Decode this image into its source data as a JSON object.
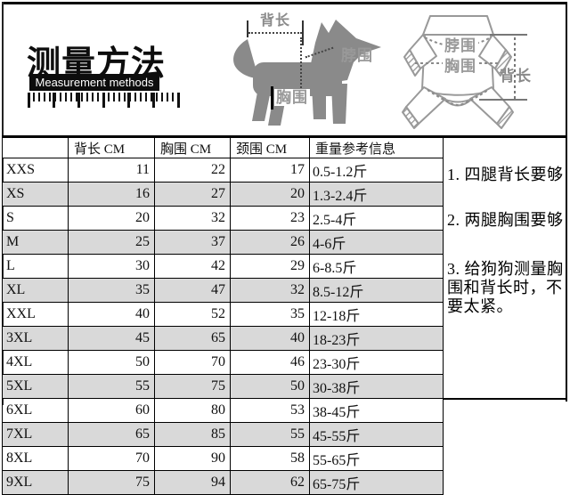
{
  "title": {
    "cn": "测量方法",
    "en": "Measurement methods"
  },
  "dog_diagram": {
    "back_length": "背长",
    "neck": "脖围",
    "chest": "胸围"
  },
  "garment_diagram": {
    "neck": "脖围",
    "chest": "胸围",
    "back_length": "背长"
  },
  "size_table": {
    "columns": [
      "",
      "背长 CM",
      "胸围 CM",
      "颈围 CM",
      "重量参考信息"
    ],
    "rows": [
      [
        "XXS",
        "11",
        "22",
        "17",
        "0.5-1.2斤"
      ],
      [
        "XS",
        "16",
        "27",
        "20",
        "1.3-2.4斤"
      ],
      [
        "S",
        "20",
        "32",
        "23",
        "2.5-4斤"
      ],
      [
        "M",
        "25",
        "37",
        "26",
        "4-6斤"
      ],
      [
        "L",
        "30",
        "42",
        "29",
        "6-8.5斤"
      ],
      [
        "XL",
        "35",
        "47",
        "32",
        "8.5-12斤"
      ],
      [
        "XXL",
        "40",
        "52",
        "35",
        "12-18斤"
      ],
      [
        "3XL",
        "45",
        "65",
        "40",
        "18-23斤"
      ],
      [
        "4XL",
        "50",
        "70",
        "46",
        "23-30斤"
      ],
      [
        "5XL",
        "55",
        "75",
        "50",
        "30-38斤"
      ],
      [
        "6XL",
        "60",
        "80",
        "53",
        "38-45斤"
      ],
      [
        "7XL",
        "65",
        "85",
        "55",
        "45-55斤"
      ],
      [
        "8XL",
        "70",
        "90",
        "58",
        "55-65斤"
      ],
      [
        "9XL",
        "75",
        "94",
        "62",
        "65-75斤"
      ]
    ]
  },
  "notes": [
    "1. 四腿背长要够",
    "2. 两腿胸围要够",
    "3. 给狗狗测量胸围和背长时，不要太紧。"
  ],
  "colors": {
    "border": "#000000",
    "row_alt": "#d9d9d9",
    "silhouette": "#8a8a8a",
    "label_gray": "#999999",
    "dash_dark": "#444444"
  }
}
